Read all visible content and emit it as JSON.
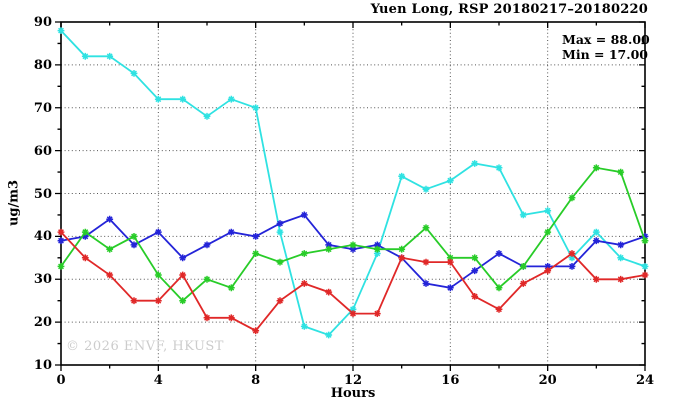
{
  "title": "Yuen Long, RSP 20180217–20180220",
  "annotations": {
    "max_label": "Max = 88.00",
    "min_label": "Min = 17.00"
  },
  "watermark": "© 2026 ENVF, HKUST",
  "chart_data": {
    "type": "line",
    "title": "Yuen Long, RSP 20180217–20180220",
    "xlabel": "Hours",
    "ylabel": "ug/m3",
    "xlim": [
      0,
      24
    ],
    "ylim": [
      10,
      90
    ],
    "x_major_ticks": [
      0,
      4,
      8,
      12,
      16,
      20,
      24
    ],
    "x_minor_ticks": [
      2,
      6,
      10,
      14,
      18,
      22
    ],
    "y_major_ticks": [
      10,
      20,
      30,
      40,
      50,
      60,
      70,
      80,
      90
    ],
    "y_minor_ticks": [
      15,
      25,
      35,
      45,
      55,
      65,
      75,
      85
    ],
    "grid_x": [
      4,
      8,
      12,
      16,
      20
    ],
    "grid_y": [
      20,
      30,
      40,
      50,
      60,
      70,
      80
    ],
    "legend": "none",
    "marker": "asterisk",
    "x": [
      0,
      1,
      2,
      3,
      4,
      5,
      6,
      7,
      8,
      9,
      10,
      11,
      12,
      13,
      14,
      15,
      16,
      17,
      18,
      19,
      20,
      21,
      22,
      23,
      24
    ],
    "series": [
      {
        "name": "rsp-line-cyan",
        "color": "#2fe2e2",
        "values": [
          88,
          82,
          82,
          78,
          72,
          72,
          68,
          72,
          70,
          41,
          19,
          17,
          23,
          36,
          54,
          51,
          53,
          57,
          56,
          45,
          46,
          35,
          41,
          35,
          33
        ]
      },
      {
        "name": "rsp-line-blue",
        "color": "#2424d8",
        "values": [
          39,
          40,
          44,
          38,
          41,
          35,
          38,
          41,
          40,
          43,
          45,
          38,
          37,
          38,
          35,
          29,
          28,
          32,
          36,
          33,
          33,
          33,
          39,
          38,
          40
        ]
      },
      {
        "name": "rsp-line-green",
        "color": "#28cc28",
        "values": [
          33,
          41,
          37,
          40,
          31,
          25,
          30,
          28,
          36,
          34,
          36,
          37,
          38,
          37,
          37,
          42,
          35,
          35,
          28,
          33,
          41,
          49,
          56,
          55,
          39
        ]
      },
      {
        "name": "rsp-line-red",
        "color": "#e02828",
        "values": [
          41,
          35,
          31,
          25,
          25,
          31,
          21,
          21,
          18,
          25,
          29,
          27,
          22,
          22,
          35,
          34,
          34,
          26,
          23,
          29,
          32,
          36,
          30,
          30,
          31
        ]
      }
    ],
    "stats": {
      "max": 88.0,
      "min": 17.0
    }
  }
}
